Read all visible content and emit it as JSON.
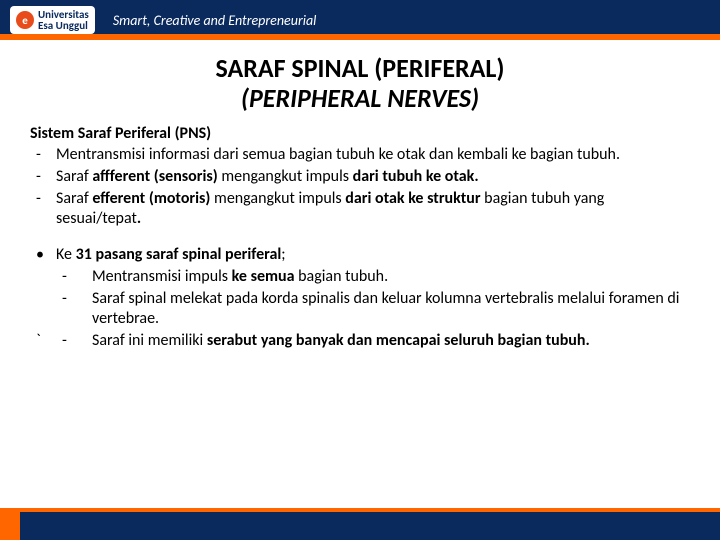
{
  "header": {
    "logo_initial": "e",
    "logo_line1": "Universitas",
    "logo_line2": "Esa Unggul",
    "tagline": "Smart, Creative and Entrepreneurial"
  },
  "title": {
    "line1": "SARAF SPINAL (PERIFERAL)",
    "line2": "(PERIPHERAL NERVES)"
  },
  "section1": {
    "heading": "Sistem Saraf Periferal (PNS)",
    "items": [
      {
        "pre": "Mentransmisi  informasi dari semua bagian tubuh ke otak dan kembali ke bagian tubuh."
      },
      {
        "pre": "Saraf ",
        "b": "affferent (sensoris) ",
        "post1": "mengangkut impuls ",
        "b2": "dari tubuh ke otak."
      },
      {
        "pre": "Saraf ",
        "b": "efferent  (motoris) ",
        "post1": "mengangkut impuls ",
        "b2": "dari otak ke struktur ",
        "post2": "bagian tubuh yang sesuai/tepat",
        "b3": "."
      }
    ]
  },
  "section2": {
    "lead_pre": "Ke ",
    "lead_b": "31 pasang saraf spinal periferal",
    "lead_post": ";",
    "subitems": [
      {
        "pre": "Mentransmisi impuls ",
        "b": "ke semua ",
        "post": "bagian tubuh."
      },
      {
        "pre": "Saraf spinal melekat pada korda spinalis dan keluar kolumna vertebralis melalui foramen di vertebrae."
      }
    ],
    "tail": {
      "pre": "Saraf ini memiliki ",
      "b": "serabut yang banyak dan  mencapai seluruh bagian tubuh."
    }
  },
  "colors": {
    "navy": "#0a2a5e",
    "orange": "#ff6600",
    "logo_red": "#e84c1a"
  }
}
